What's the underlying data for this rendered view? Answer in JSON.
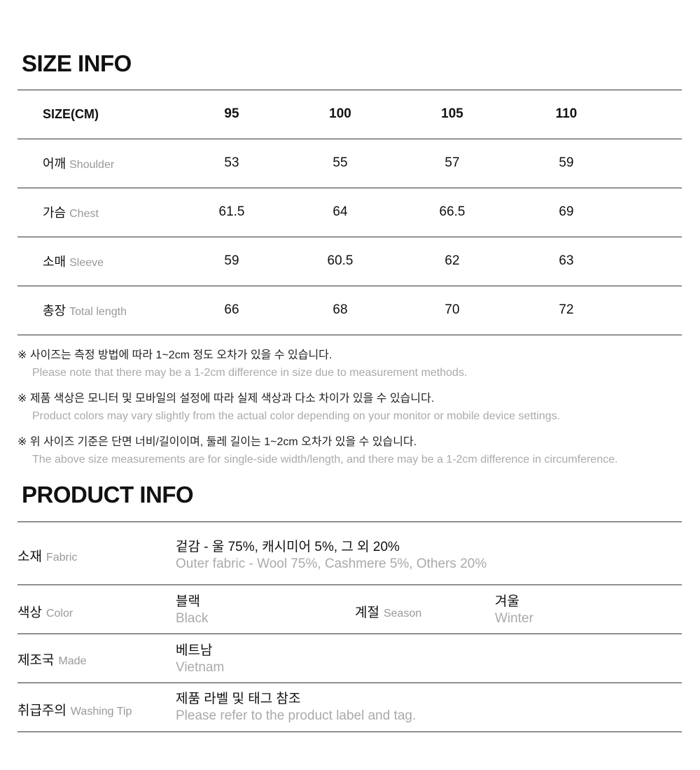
{
  "size_info": {
    "title": "SIZE INFO",
    "header": {
      "label": "SIZE(CM)",
      "sizes": [
        "95",
        "100",
        "105",
        "110"
      ]
    },
    "rows": [
      {
        "ko": "어깨",
        "en": "Shoulder",
        "values": [
          "53",
          "55",
          "57",
          "59"
        ]
      },
      {
        "ko": "가슴",
        "en": "Chest",
        "values": [
          "61.5",
          "64",
          "66.5",
          "69"
        ]
      },
      {
        "ko": "소매",
        "en": "Sleeve",
        "values": [
          "59",
          "60.5",
          "62",
          "63"
        ]
      },
      {
        "ko": "총장",
        "en": "Total length",
        "values": [
          "66",
          "68",
          "70",
          "72"
        ]
      }
    ],
    "notes": [
      {
        "ko": "※ 사이즈는 측정 방법에 따라 1~2cm 정도 오차가 있을 수 있습니다.",
        "en": "Please note that there may be a 1-2cm difference in size due to measurement methods."
      },
      {
        "ko": "※ 제품 색상은 모니터 및 모바일의 설정에 따라 실제 색상과 다소 차이가 있을 수 있습니다.",
        "en": "Product colors may vary slightly from the actual color depending on your monitor or mobile device settings."
      },
      {
        "ko": "※ 위 사이즈 기준은 단면 너비/길이이며, 둘레 길이는 1~2cm 오차가 있을 수 있습니다.",
        "en": "The above size measurements are for single-side width/length, and there may be a 1-2cm difference in circumference."
      }
    ]
  },
  "product_info": {
    "title": "PRODUCT INFO",
    "fabric": {
      "ko": "소재",
      "en": "Fabric",
      "value_ko": "겉감 - 울 75%, 캐시미어 5%, 그 외 20%",
      "value_en": "Outer fabric - Wool 75%, Cashmere 5%, Others 20%"
    },
    "color": {
      "ko": "색상",
      "en": "Color",
      "value_ko": "블랙",
      "value_en": "Black"
    },
    "season": {
      "ko": "계절",
      "en": "Season",
      "value_ko": "겨울",
      "value_en": "Winter"
    },
    "made": {
      "ko": "제조국",
      "en": "Made",
      "value_ko": "베트남",
      "value_en": "Vietnam"
    },
    "washing": {
      "ko": "취급주의",
      "en": "Washing Tip",
      "value_ko": "제품 라벨 및 태그 참조",
      "value_en": "Please refer to the product label and tag."
    }
  }
}
